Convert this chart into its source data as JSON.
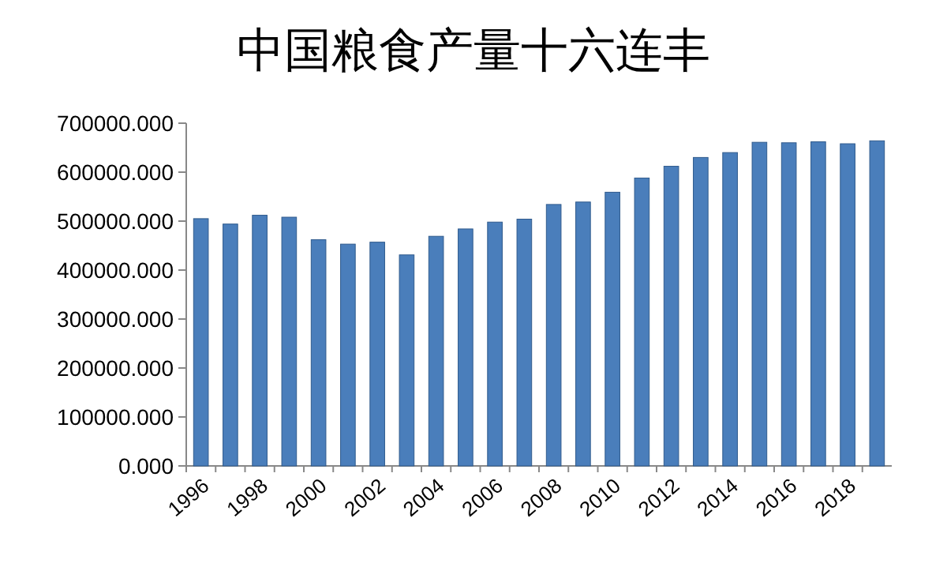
{
  "chart_data": {
    "type": "bar",
    "title": "中国粮食产量十六连丰",
    "categories": [
      "1996",
      null,
      "1998",
      null,
      "2000",
      null,
      "2002",
      null,
      "2004",
      null,
      "2006",
      null,
      "2008",
      null,
      "2010",
      null,
      "2012",
      null,
      "2014",
      null,
      "2016",
      null,
      "2018",
      null
    ],
    "values": [
      505000,
      494000,
      512000,
      508000,
      462000,
      453000,
      457000,
      431000,
      469000,
      484000,
      498000,
      504000,
      534000,
      539000,
      559000,
      588000,
      612000,
      630000,
      640000,
      661000,
      660000,
      662000,
      658000,
      664000
    ],
    "color": "#4a7ebb",
    "ylim": [
      0,
      700000
    ],
    "yticks": [
      {
        "value": 0,
        "label": "0.000"
      },
      {
        "value": 100000,
        "label": "100000.000"
      },
      {
        "value": 200000,
        "label": "200000.000"
      },
      {
        "value": 300000,
        "label": "300000.000"
      },
      {
        "value": 400000,
        "label": "400000.000"
      },
      {
        "value": 500000,
        "label": "500000.000"
      },
      {
        "value": 600000,
        "label": "600000.000"
      },
      {
        "value": 700000,
        "label": "700000.000"
      }
    ]
  }
}
